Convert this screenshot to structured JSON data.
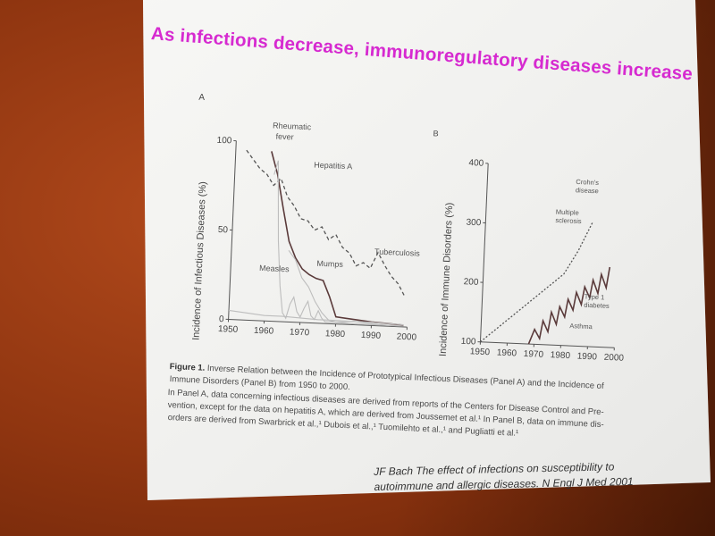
{
  "slide": {
    "title": "As infections decrease, immunoregulatory diseases increase",
    "caption_line1_bold": "Figure 1.",
    "caption_line1": " Inverse Relation between the Incidence of Prototypical Infectious Diseases (Panel A) and the Incidence of",
    "caption_line2": "Immune Disorders (Panel B) from 1950 to 2000.",
    "caption_line3": "In Panel A, data concerning infectious diseases are derived from reports of the Centers for Disease Control and Pre-",
    "caption_line4": "vention, except for the data on hepatitis A, which are derived from Joussemet et al.¹ In Panel B, data on immune dis-",
    "caption_line5": "orders are derived from Swarbrick et al.,¹ Dubois et al.,¹ Tuomilehto et al.,¹ and Pugliatti et al.¹",
    "citation_line1": "JF Bach The effect of infections on susceptibility to",
    "citation_line2": "autoimmune and allergic diseases. N Engl J Med 2001",
    "colors": {
      "title": "#d62ad0",
      "slide_bg": "#f6f6f4",
      "wall": "#9a3a12"
    }
  },
  "chart_data": [
    {
      "type": "line",
      "panel_label": "A",
      "ylabel": "Incidence of Infectious Diseases (%)",
      "xlabel": "",
      "xlim": [
        1950,
        2000
      ],
      "ylim": [
        0,
        100
      ],
      "x_ticks": [
        "1950",
        "1960",
        "1970",
        "1980",
        "1990",
        "2000"
      ],
      "y_ticks": [
        "0",
        "50",
        "100"
      ],
      "series": [
        {
          "name": "Rheumatic fever",
          "style": "solid-dark",
          "x": [
            1960,
            1962,
            1964,
            1966,
            1968,
            1970,
            1972,
            1974,
            1976,
            1978,
            1980,
            1985,
            1990,
            1995,
            1999
          ],
          "y": [
            95,
            82,
            63,
            45,
            36,
            30,
            27,
            25,
            24,
            15,
            4,
            3,
            2,
            1.5,
            1
          ]
        },
        {
          "name": "Hepatitis A",
          "style": "dashed",
          "x": [
            1953,
            1955,
            1957,
            1959,
            1961,
            1963,
            1965,
            1967,
            1969,
            1971,
            1973,
            1975,
            1977,
            1979,
            1981,
            1983,
            1985,
            1987,
            1989,
            1991,
            1993,
            1995,
            1997,
            1999
          ],
          "y": [
            95,
            90,
            85,
            82,
            76,
            80,
            70,
            65,
            58,
            57,
            52,
            54,
            47,
            50,
            43,
            40,
            33,
            35,
            32,
            41,
            34,
            28,
            24,
            17
          ]
        },
        {
          "name": "Measles",
          "style": "solid-light",
          "x": [
            1961,
            1962,
            1963,
            1964,
            1965,
            1966,
            1967,
            1968,
            1969,
            1970,
            1971,
            1972,
            1973,
            1974,
            1975,
            1976,
            1977,
            1980,
            1985,
            1990,
            1995,
            1999
          ],
          "y": [
            82,
            90,
            45,
            20,
            5,
            2,
            10,
            14,
            6,
            3,
            8,
            12,
            4,
            2,
            7,
            3,
            1,
            1,
            2,
            1,
            0.5,
            0.5
          ]
        },
        {
          "name": "Mumps",
          "style": "solid-light",
          "x": [
            1966,
            1968,
            1970,
            1972,
            1974,
            1976,
            1978,
            1980,
            1985,
            1990,
            1995,
            1999
          ],
          "y": [
            40,
            35,
            25,
            20,
            12,
            6,
            2,
            1,
            0.5,
            0.5,
            0.5,
            0.5
          ]
        },
        {
          "name": "Tuberculosis",
          "style": "solid-light",
          "x": [
            1950,
            1955,
            1960,
            1965,
            1970,
            1975,
            1980,
            1985,
            1990,
            1995,
            1999
          ],
          "y": [
            5,
            4,
            3,
            3,
            2.5,
            2,
            2,
            1.8,
            1.8,
            1.5,
            1.2
          ]
        }
      ],
      "annotations": [
        {
          "text": "Rheumatic",
          "x": 1960,
          "y": 108
        },
        {
          "text": "fever",
          "x": 1961,
          "y": 102
        },
        {
          "text": "Hepatitis A",
          "x": 1972,
          "y": 87
        },
        {
          "text": "Tuberculosis",
          "x": 1990,
          "y": 40
        },
        {
          "text": "Measles",
          "x": 1958,
          "y": 28
        },
        {
          "text": "Mumps",
          "x": 1974,
          "y": 32
        }
      ]
    },
    {
      "type": "line",
      "panel_label": "B",
      "ylabel": "Incidence of Immune Disorders (%)",
      "xlabel": "",
      "xlim": [
        1950,
        2000
      ],
      "ylim": [
        100,
        400
      ],
      "x_ticks": [
        "1950",
        "1960",
        "1970",
        "1980",
        "1990",
        "2000"
      ],
      "y_ticks": [
        "100",
        "200",
        "300",
        "400"
      ],
      "series": [
        {
          "name": "Multiple sclerosis",
          "style": "dotted",
          "x": [
            1950,
            1960,
            1970,
            1980,
            1985,
            1990
          ],
          "y": [
            100,
            140,
            180,
            220,
            260,
            310
          ]
        },
        {
          "name": "Crohn's disease",
          "style": "none",
          "x": [],
          "y": []
        },
        {
          "name": "Type 1 diabetes",
          "style": "solid-dark",
          "x": [
            1968,
            1970,
            1972,
            1973,
            1975,
            1976,
            1978,
            1979,
            1981,
            1982,
            1984,
            1985,
            1987,
            1988,
            1990,
            1991,
            1993,
            1994,
            1996,
            1997
          ],
          "y": [
            100,
            125,
            110,
            140,
            122,
            155,
            135,
            165,
            148,
            178,
            160,
            190,
            170,
            200,
            182,
            212,
            190,
            222,
            200,
            235
          ]
        },
        {
          "name": "Asthma",
          "style": "none",
          "x": [],
          "y": []
        }
      ],
      "annotations": [
        {
          "text": "Crohn's",
          "x": 1983,
          "y": 372
        },
        {
          "text": "disease",
          "x": 1983,
          "y": 358
        },
        {
          "text": "Multiple",
          "x": 1976,
          "y": 320
        },
        {
          "text": "sclerosis",
          "x": 1976,
          "y": 306
        },
        {
          "text": "Type 1",
          "x": 1988,
          "y": 180
        },
        {
          "text": "diabetes",
          "x": 1988,
          "y": 166
        },
        {
          "text": "Asthma",
          "x": 1983,
          "y": 130
        }
      ]
    }
  ]
}
